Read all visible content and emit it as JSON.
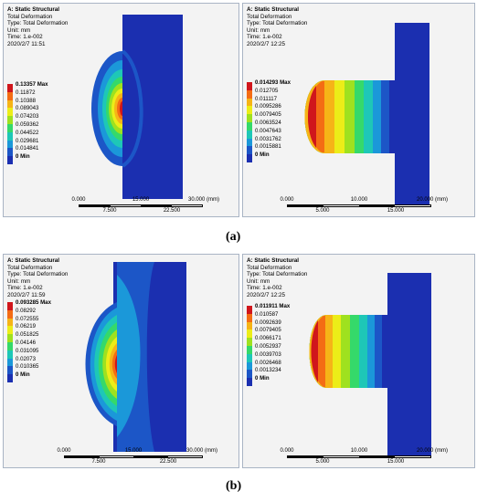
{
  "panels": {
    "a_left": {
      "title": "A: Static Structural",
      "lines": [
        "Total Deformation",
        "Type: Total Deformation",
        "Unit: mm",
        "Time: 1.e-002",
        "2020/2/7 11:51"
      ],
      "legend": [
        "0.13357 Max",
        "0.11872",
        "0.10388",
        "0.089043",
        "0.074203",
        "0.059362",
        "0.044522",
        "0.029681",
        "0.014841",
        "0 Min"
      ],
      "scale_top": [
        "0.000",
        "15.000",
        "30.000 (mm)"
      ],
      "scale_bottom": [
        "7.500",
        "22.500"
      ]
    },
    "a_right": {
      "title": "A: Static Structural",
      "lines": [
        "Total Deformation",
        "Type: Total Deformation",
        "Unit: mm",
        "Time: 1.e-002",
        "2020/2/7 12:25"
      ],
      "legend": [
        "0.014293 Max",
        "0.012705",
        "0.011117",
        "0.0095286",
        "0.0079405",
        "0.0063524",
        "0.0047643",
        "0.0031762",
        "0.0015881",
        "0 Min"
      ],
      "scale_top": [
        "0.000",
        "10.000",
        "20.000 (mm)"
      ],
      "scale_bottom": [
        "5.000",
        "15.000"
      ]
    },
    "b_left": {
      "title": "A: Static Structural",
      "lines": [
        "Total Deformation",
        "Type: Total Deformation",
        "Unit: mm",
        "Time: 1.e-002",
        "2020/2/7 11:59"
      ],
      "legend": [
        "0.093285 Max",
        "0.08292",
        "0.072555",
        "0.06219",
        "0.051825",
        "0.04146",
        "0.031095",
        "0.02073",
        "0.010365",
        "0 Min"
      ],
      "scale_top": [
        "0.000",
        "15.000",
        "30.000 (mm)"
      ],
      "scale_bottom": [
        "7.500",
        "22.500"
      ]
    },
    "b_right": {
      "title": "A: Static Structural",
      "lines": [
        "Total Deformation",
        "Type: Total Deformation",
        "Unit: mm",
        "Time: 1.e-002",
        "2020/2/7 12:25"
      ],
      "legend": [
        "0.011911 Max",
        "0.010587",
        "0.0092639",
        "0.0079405",
        "0.0066171",
        "0.0052937",
        "0.0039703",
        "0.0026468",
        "0.0013234",
        "0 Min"
      ],
      "scale_top": [
        "0.000",
        "10.000",
        "20.000 (mm)"
      ],
      "scale_bottom": [
        "5.000",
        "15.000"
      ]
    }
  },
  "captions": {
    "a": "(a)",
    "b": "(b)"
  },
  "colors": {
    "legend_scale": [
      "#d0161c",
      "#f46c14",
      "#f6b417",
      "#eced18",
      "#9fe11f",
      "#35d96a",
      "#1ec7b7",
      "#1b98d9",
      "#1c56c7",
      "#1b2fb0"
    ],
    "panel_background": "#f3f3f3",
    "panel_border": "#a9b4c4"
  }
}
